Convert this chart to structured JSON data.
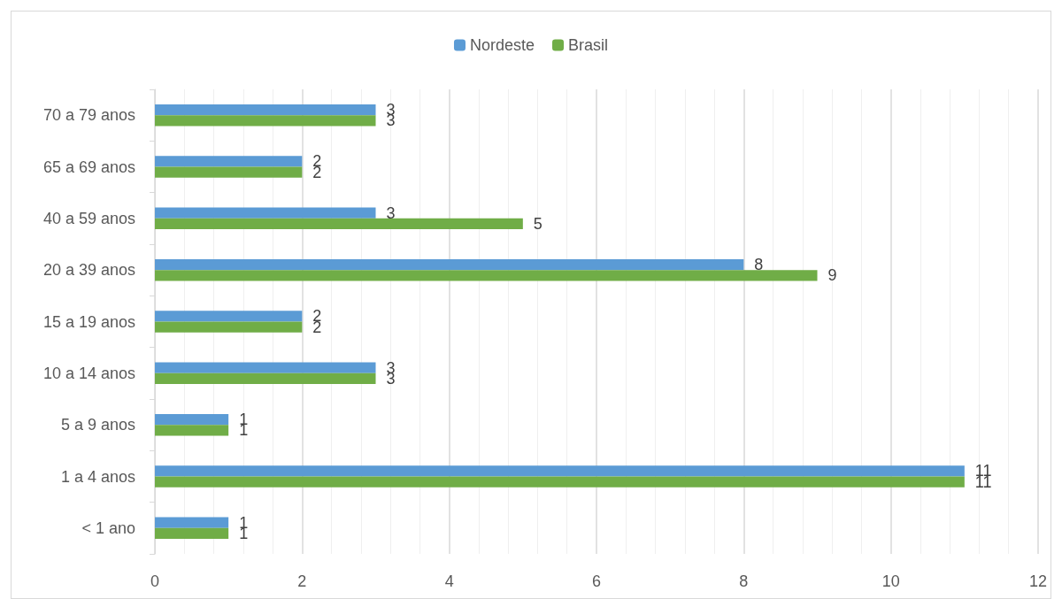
{
  "chart_data": {
    "type": "bar",
    "orientation": "horizontal",
    "categories": [
      "70 a 79 anos",
      "65 a 69 anos",
      "40 a 59 anos",
      "20 a 39 anos",
      "15 a 19 anos",
      "10 a 14 anos",
      "5 a 9 anos",
      "1 a 4 anos",
      "< 1 ano"
    ],
    "series": [
      {
        "name": "Nordeste",
        "color": "#5b9bd5",
        "values": [
          3,
          2,
          3,
          8,
          2,
          3,
          1,
          11,
          1
        ]
      },
      {
        "name": "Brasil",
        "color": "#70ad47",
        "values": [
          3,
          2,
          5,
          9,
          2,
          3,
          1,
          11,
          1
        ]
      }
    ],
    "xlim": [
      0,
      12
    ],
    "xticks": [
      0,
      2,
      4,
      6,
      8,
      10,
      12
    ],
    "grid": "x",
    "legend": "top",
    "data_labels": true
  }
}
